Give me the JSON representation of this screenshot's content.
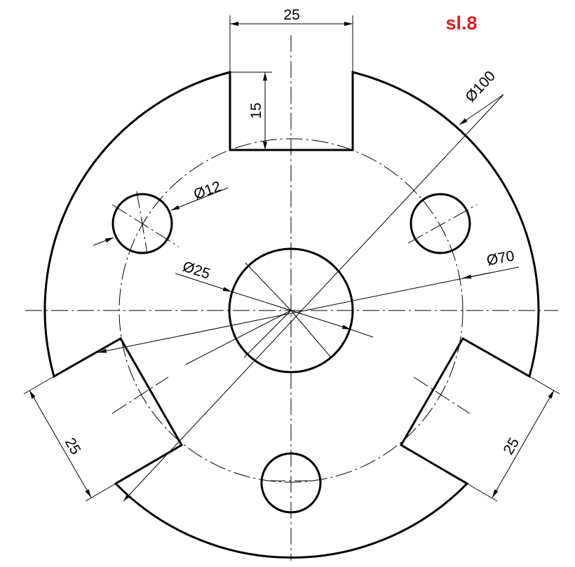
{
  "drawing": {
    "sheet_label": "sl.8",
    "sheet_label_color": "#e02020",
    "line_color": "#000000",
    "dimensions": {
      "slot_width_top": "25",
      "slot_depth_top": "15",
      "outer_diameter": "Ø100",
      "hole_diameter": "Ø12",
      "pitch_circle_diameter": "Ø70",
      "center_bore_diameter": "Ø25",
      "slot_width_left": "25",
      "slot_width_right": "25"
    }
  }
}
